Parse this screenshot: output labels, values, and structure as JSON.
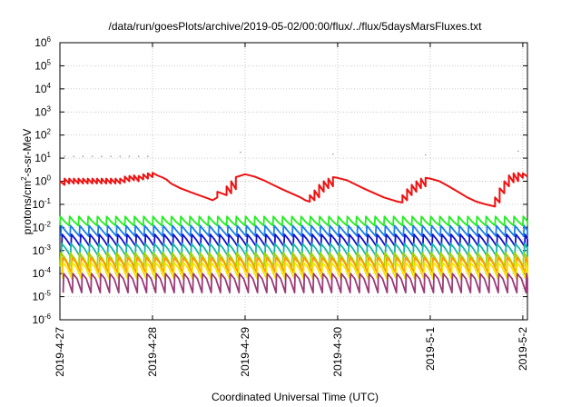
{
  "chart_data": {
    "type": "line",
    "title": "/data/run/goesPlots/archive/2019-05-02/00:00/flux/../flux/5daysMarsFluxes.txt",
    "xlabel": "Coordinated Universal Time (UTC)",
    "ylabel": "protons/cm²-s-sr-MeV",
    "ylabel_parts": {
      "base": "protons/cm",
      "sup": "2",
      "rest": "-s-sr-MeV"
    },
    "yscale": "log",
    "ylim": [
      1e-06,
      1000000.0
    ],
    "xlim": [
      0,
      5.05
    ],
    "x_unit": "days since 2019-4-27 00:00 UTC",
    "x_ticks": [
      {
        "value": 0,
        "label": "2019-4-27"
      },
      {
        "value": 1,
        "label": "2019-4-28"
      },
      {
        "value": 2,
        "label": "2019-4-29"
      },
      {
        "value": 3,
        "label": "2019-4-30"
      },
      {
        "value": 4,
        "label": "2019-5-1"
      },
      {
        "value": 5,
        "label": "2019-5-2"
      }
    ],
    "y_ticks": [
      {
        "exp": -6,
        "label": "10",
        "sup": "-6"
      },
      {
        "exp": -5,
        "label": "10",
        "sup": "-5"
      },
      {
        "exp": -4,
        "label": "10",
        "sup": "-4"
      },
      {
        "exp": -3,
        "label": "10",
        "sup": "-3"
      },
      {
        "exp": -2,
        "label": "10",
        "sup": "-2"
      },
      {
        "exp": -1,
        "label": "10",
        "sup": "-1"
      },
      {
        "exp": 0,
        "label": "10",
        "sup": "0"
      },
      {
        "exp": 1,
        "label": "10",
        "sup": "1"
      },
      {
        "exp": 2,
        "label": "10",
        "sup": "2"
      },
      {
        "exp": 3,
        "label": "10",
        "sup": "3"
      },
      {
        "exp": 4,
        "label": "10",
        "sup": "4"
      },
      {
        "exp": 5,
        "label": "10",
        "sup": "5"
      },
      {
        "exp": 6,
        "label": "10",
        "sup": "6"
      }
    ],
    "grid": true,
    "legend": "none",
    "series": [
      {
        "color": "#ee1111",
        "x": [
          0.0,
          0.05,
          0.05,
          0.1,
          0.1,
          0.15,
          0.15,
          0.2,
          0.2,
          0.25,
          0.25,
          0.3,
          0.3,
          0.35,
          0.35,
          0.4,
          0.4,
          0.45,
          0.45,
          0.5,
          0.5,
          0.55,
          0.55,
          0.6,
          0.6,
          0.65,
          0.65,
          0.7,
          0.7,
          0.75,
          0.75,
          0.8,
          0.8,
          0.85,
          0.85,
          0.9,
          0.9,
          0.95,
          0.95,
          1.0,
          1.0,
          1.05,
          1.1,
          1.15,
          1.2,
          1.3,
          1.4,
          1.5,
          1.6,
          1.65,
          1.7,
          1.7,
          1.8,
          1.8,
          1.85,
          1.85,
          1.9,
          1.9,
          2.0,
          2.1,
          2.2,
          2.3,
          2.4,
          2.5,
          2.6,
          2.65,
          2.7,
          2.7,
          2.75,
          2.75,
          2.8,
          2.8,
          2.85,
          2.85,
          2.9,
          2.9,
          2.95,
          2.95,
          3.0,
          3.1,
          3.2,
          3.3,
          3.4,
          3.5,
          3.6,
          3.65,
          3.7,
          3.7,
          3.75,
          3.75,
          3.8,
          3.8,
          3.85,
          3.85,
          3.9,
          3.9,
          3.95,
          3.95,
          4.0,
          4.1,
          4.2,
          4.3,
          4.4,
          4.5,
          4.6,
          4.65,
          4.7,
          4.7,
          4.75,
          4.75,
          4.8,
          4.8,
          4.85,
          4.85,
          4.9,
          4.9,
          4.95,
          4.95,
          5.0,
          5.0,
          5.05
        ],
        "y": [
          1.0,
          0.7,
          1.3,
          0.8,
          1.3,
          0.8,
          1.3,
          0.8,
          1.3,
          0.8,
          1.3,
          0.8,
          1.3,
          0.8,
          1.3,
          0.8,
          1.3,
          0.8,
          1.3,
          0.8,
          1.3,
          0.8,
          1.3,
          0.8,
          1.3,
          0.8,
          1.3,
          0.9,
          1.6,
          1.0,
          1.7,
          1.1,
          1.8,
          1.0,
          1.7,
          1.2,
          2.0,
          1.3,
          2.2,
          1.5,
          2.3,
          1.8,
          1.5,
          1.2,
          0.8,
          0.5,
          0.35,
          0.25,
          0.18,
          0.15,
          0.2,
          0.35,
          0.25,
          0.6,
          0.3,
          1.0,
          0.45,
          1.5,
          2.0,
          1.6,
          1.1,
          0.7,
          0.45,
          0.3,
          0.2,
          0.15,
          0.13,
          0.25,
          0.15,
          0.4,
          0.2,
          0.7,
          0.35,
          1.0,
          0.5,
          1.3,
          0.6,
          1.5,
          1.4,
          1.1,
          0.7,
          0.45,
          0.3,
          0.2,
          0.15,
          0.13,
          0.12,
          0.25,
          0.15,
          0.45,
          0.25,
          0.7,
          0.35,
          1.0,
          0.5,
          1.3,
          0.6,
          1.4,
          1.3,
          1.0,
          0.6,
          0.35,
          0.2,
          0.13,
          0.1,
          0.09,
          0.08,
          0.2,
          0.12,
          0.5,
          0.3,
          1.0,
          0.6,
          1.8,
          0.9,
          2.2,
          1.0,
          2.3,
          1.4,
          2.2,
          1.6
        ]
      },
      {
        "color": "#22ee22",
        "base": 0.03,
        "drop": 0.4,
        "phase": 0.0
      },
      {
        "color": "#1a7fe8",
        "base": 0.012,
        "drop": 0.35,
        "phase": 0.01
      },
      {
        "color": "#1111cc",
        "base": 0.005,
        "drop": 0.3,
        "phase": 0.02
      },
      {
        "color": "#14b8a6",
        "base": 0.002,
        "drop": 0.28,
        "phase": 0.015
      },
      {
        "color": "#a8d400",
        "base": 0.0008,
        "drop": 0.25,
        "phase": 0.005
      },
      {
        "color": "#ff9900",
        "base": 0.0005,
        "drop": 0.22,
        "phase": 0.025
      },
      {
        "color": "#f2e600",
        "base": 0.0003,
        "drop": 0.2,
        "phase": 0.03
      },
      {
        "color": "#9b3a7a",
        "base": 0.0001,
        "drop": 0.15,
        "phase": 0.035
      }
    ],
    "oscillation_period_days": 0.1,
    "upper_markers": [
      {
        "x": 0.05,
        "y": 12
      },
      {
        "x": 0.15,
        "y": 12
      },
      {
        "x": 0.25,
        "y": 12
      },
      {
        "x": 0.35,
        "y": 12
      },
      {
        "x": 0.45,
        "y": 12
      },
      {
        "x": 0.55,
        "y": 12
      },
      {
        "x": 0.65,
        "y": 12
      },
      {
        "x": 0.75,
        "y": 12
      },
      {
        "x": 0.85,
        "y": 12
      },
      {
        "x": 0.95,
        "y": 12
      },
      {
        "x": 1.95,
        "y": 18
      },
      {
        "x": 2.95,
        "y": 15
      },
      {
        "x": 3.95,
        "y": 14
      },
      {
        "x": 4.95,
        "y": 20
      }
    ]
  }
}
